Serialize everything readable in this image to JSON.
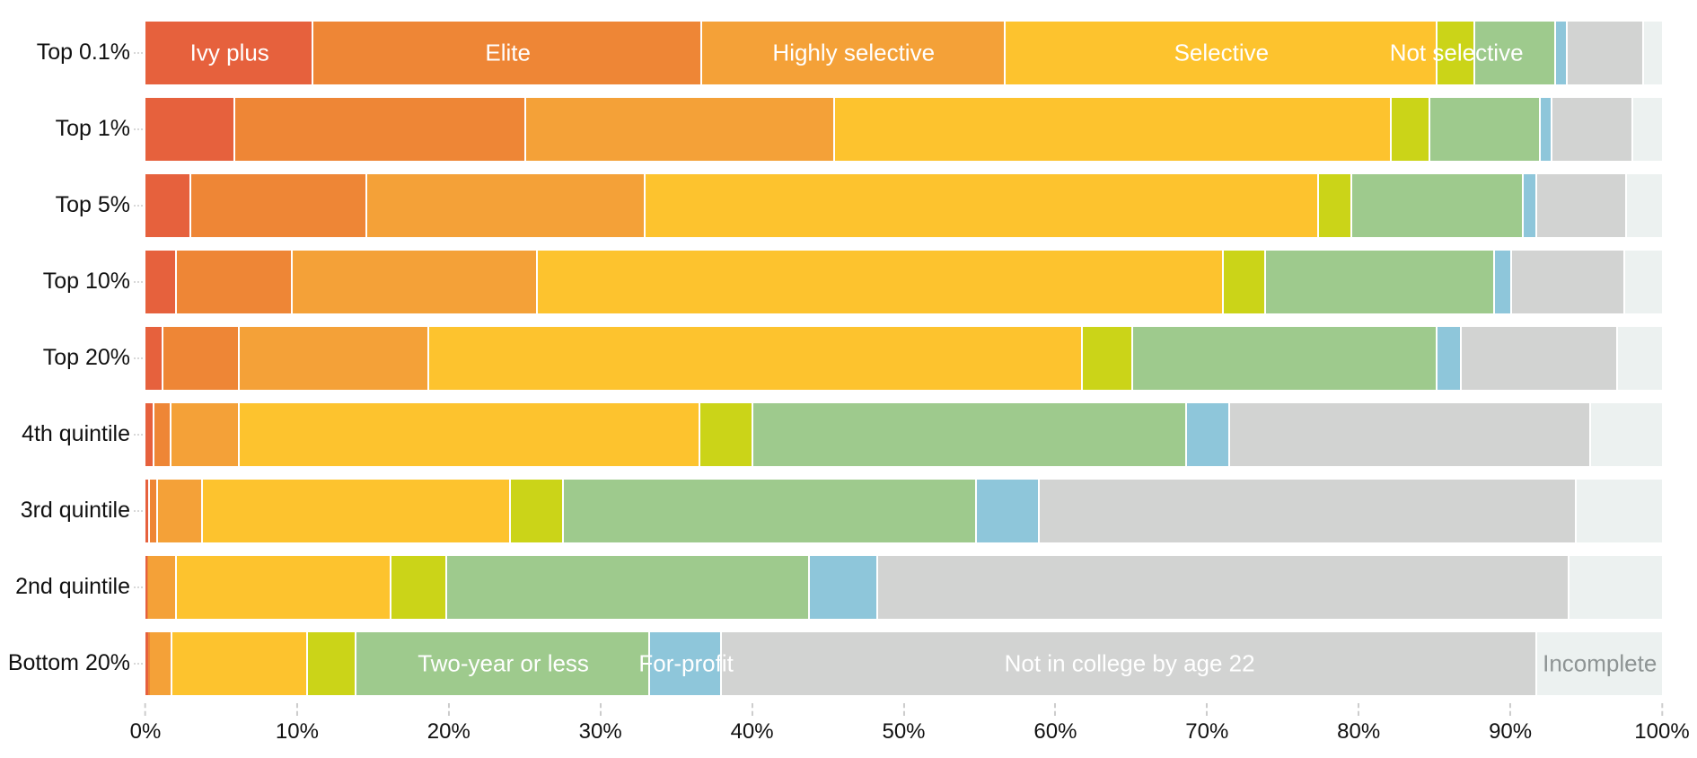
{
  "chart_data": {
    "type": "bar",
    "variant": "horizontal-stacked",
    "title": "",
    "categories": [
      "Top 0.1%",
      "Top 1%",
      "Top 5%",
      "Top 10%",
      "Top 20%",
      "4th quintile",
      "3rd quintile",
      "2nd quintile",
      "Bottom 20%"
    ],
    "series": [
      {
        "name": "Ivy plus",
        "color": "#e6613d",
        "label_row": "first",
        "values": [
          11.1,
          5.9,
          3.0,
          2.1,
          1.2,
          0.6,
          0.3,
          0.1,
          0.2
        ]
      },
      {
        "name": "Elite",
        "color": "#ee8636",
        "label_row": "first",
        "values": [
          25.6,
          19.2,
          11.6,
          7.6,
          5.0,
          1.1,
          0.5,
          0.1,
          0.1
        ]
      },
      {
        "name": "Highly selective",
        "color": "#f4a138",
        "label_row": "first",
        "values": [
          20.0,
          20.4,
          18.4,
          16.2,
          12.5,
          4.5,
          3.0,
          1.9,
          1.5
        ]
      },
      {
        "name": "Selective",
        "color": "#fdc32e",
        "label_row": "first",
        "values": [
          28.5,
          36.7,
          44.4,
          45.2,
          43.1,
          30.4,
          20.3,
          14.1,
          8.9
        ]
      },
      {
        "name": "Not selective",
        "color": "#cbd418",
        "label_row": "first",
        "values": [
          2.5,
          2.5,
          2.2,
          2.8,
          3.3,
          3.5,
          3.5,
          3.7,
          3.2
        ]
      },
      {
        "name": "Two-year or less",
        "color": "#9eca8d",
        "label_row": "last",
        "values": [
          5.3,
          7.3,
          11.3,
          15.1,
          20.1,
          28.6,
          27.2,
          23.9,
          19.4
        ]
      },
      {
        "name": "For-profit",
        "color": "#8ec6da",
        "label_row": "last",
        "values": [
          0.8,
          0.8,
          0.9,
          1.1,
          1.6,
          2.8,
          4.2,
          4.5,
          4.7
        ]
      },
      {
        "name": "Not in college by age 22",
        "color": "#d2d3d2",
        "label_row": "last",
        "values": [
          5.0,
          5.3,
          5.9,
          7.5,
          10.3,
          23.8,
          35.4,
          45.6,
          53.8
        ]
      },
      {
        "name": "Incomplete",
        "color": "#ecf1f0",
        "label_row": "last",
        "label_color": "#8e9494",
        "values": [
          1.2,
          1.9,
          2.3,
          2.4,
          2.9,
          4.7,
          5.6,
          6.1,
          8.2
        ]
      }
    ],
    "x_ticks": [
      "0%",
      "10%",
      "20%",
      "30%",
      "40%",
      "50%",
      "60%",
      "70%",
      "80%",
      "90%",
      "100%"
    ],
    "xlim": [
      0,
      100
    ],
    "grid": false,
    "legend_position": "inline-segment-labels",
    "colors": {
      "background": "#ffffff",
      "axis_text": "#111111",
      "tick_dash": "#cccccc",
      "segment_label_text": "#ffffff",
      "incomplete_label_text": "#8e9494",
      "leader_dots": "#d8d8d8"
    }
  }
}
